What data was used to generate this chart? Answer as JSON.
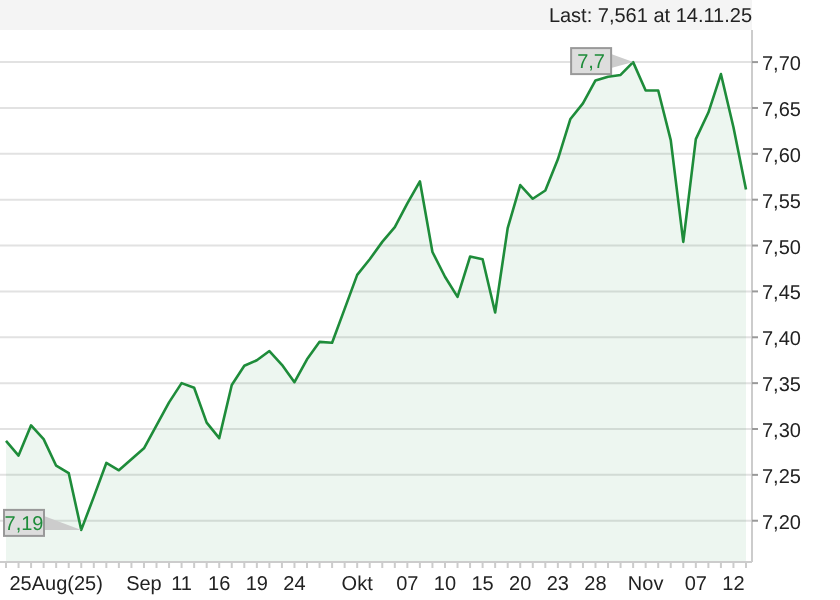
{
  "chart_data": {
    "type": "area",
    "categories": [
      null,
      null,
      null,
      null,
      "25Aug(25)",
      null,
      null,
      null,
      null,
      null,
      null,
      "Sep",
      null,
      null,
      "11",
      null,
      null,
      "16",
      null,
      null,
      "19",
      null,
      null,
      "24",
      null,
      null,
      null,
      null,
      "Okt",
      null,
      null,
      null,
      "07",
      null,
      null,
      "10",
      null,
      null,
      "15",
      null,
      null,
      "20",
      null,
      null,
      "23",
      null,
      null,
      "28",
      null,
      null,
      null,
      "Nov",
      null,
      null,
      null,
      "07",
      null,
      null,
      "12",
      null
    ],
    "series": [
      {
        "color": "#1e8c3a",
        "values": [
          7.287,
          7.271,
          7.304,
          7.289,
          7.26,
          7.252,
          7.19,
          7.226,
          7.263,
          7.255,
          7.267,
          7.279,
          7.304,
          7.329,
          7.35,
          7.345,
          7.307,
          7.29,
          7.348,
          7.369,
          7.375,
          7.385,
          7.37,
          7.351,
          7.376,
          7.395,
          7.394,
          7.431,
          7.468,
          7.485,
          7.504,
          7.52,
          7.546,
          7.57,
          7.493,
          7.466,
          7.444,
          7.488,
          7.485,
          7.427,
          7.519,
          7.566,
          7.551,
          7.56,
          7.594,
          7.638,
          7.655,
          7.68,
          7.684,
          7.686,
          7.7,
          7.669,
          7.669,
          7.615,
          7.504,
          7.616,
          7.645,
          7.687,
          7.629,
          7.561
        ]
      }
    ],
    "ylim": [
      7.155,
      7.735
    ],
    "yticks": [
      {
        "value": 7.2,
        "label": "7,20"
      },
      {
        "value": 7.25,
        "label": "7,25"
      },
      {
        "value": 7.3,
        "label": "7,30"
      },
      {
        "value": 7.35,
        "label": "7,35"
      },
      {
        "value": 7.4,
        "label": "7,40"
      },
      {
        "value": 7.45,
        "label": "7,45"
      },
      {
        "value": 7.5,
        "label": "7,50"
      },
      {
        "value": 7.55,
        "label": "7,55"
      },
      {
        "value": 7.6,
        "label": "7,60"
      },
      {
        "value": 7.65,
        "label": "7,65"
      },
      {
        "value": 7.7,
        "label": "7,70"
      }
    ],
    "grid": "y",
    "annotations": [
      "Last: 7,561 at 14.11.25",
      "7,7",
      "7,19"
    ]
  }
}
